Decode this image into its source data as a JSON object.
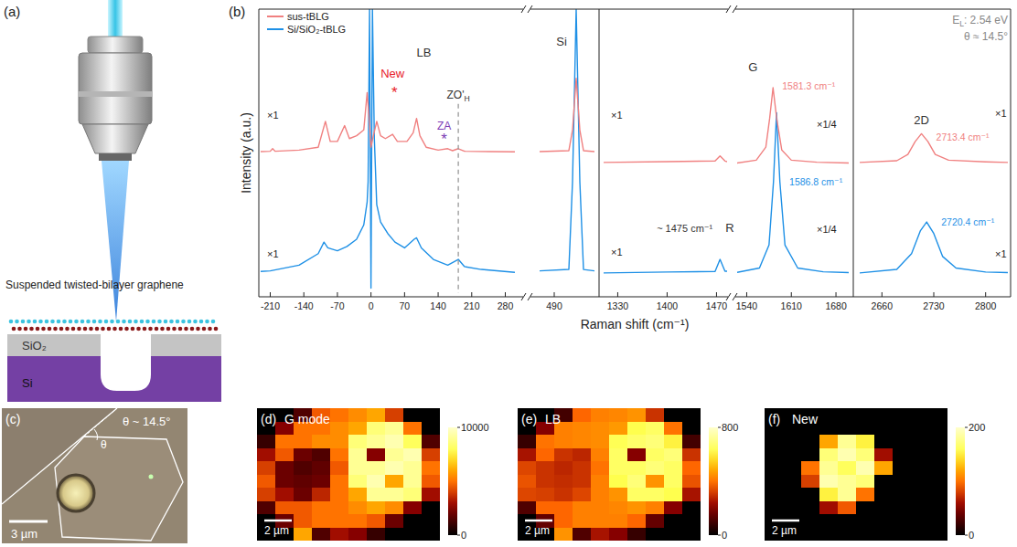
{
  "figure": {
    "a": {
      "label": "(a)",
      "sample": "Suspended twisted-bilayer graphene",
      "oxide": "SiO₂",
      "substrate": "Si"
    },
    "b": {
      "label": "(b)",
      "ylabel": "Intensity (a.u.)",
      "xlabel": "Raman shift (cm⁻¹)",
      "laser": "EL: 2.54 eV",
      "angle": "θ ≈ 14.5°"
    },
    "c": {
      "label": "(c)",
      "angle": "θ ~ 14.5°",
      "theta": "θ",
      "scale_bar": "3 µm"
    }
  },
  "chart_data": [
    {
      "type": "line",
      "xlim": [
        -230,
        300
      ],
      "ylim": [
        0,
        100
      ],
      "xticks": [
        -210,
        -140,
        -70,
        0,
        70,
        140,
        210,
        280
      ],
      "tick_labels": "x",
      "series": [
        {
          "name": "sus-tBLG",
          "color": "#f08080",
          "x": [
            -230,
            -210,
            -205,
            -200,
            -150,
            -110,
            -95,
            -85,
            -70,
            -55,
            -45,
            -30,
            -15,
            -8,
            -3,
            0,
            5,
            12,
            20,
            30,
            45,
            55,
            75,
            88,
            95,
            102,
            115,
            140,
            160,
            170,
            182,
            195,
            250,
            300
          ],
          "values": [
            50.5,
            50.6,
            51.5,
            50.6,
            51,
            52,
            61,
            54,
            54,
            59.5,
            55,
            56,
            58,
            71,
            60,
            52,
            56,
            61,
            56,
            55,
            56.5,
            54,
            54,
            57,
            62,
            56,
            52,
            51,
            51.5,
            50.8,
            51.5,
            50.6,
            50.5,
            50.4
          ]
        },
        {
          "name": "Si/SiO₂-tBLG",
          "color": "#1e90e6",
          "x": [
            -230,
            -210,
            -150,
            -110,
            -98,
            -90,
            -70,
            -50,
            -30,
            -15,
            -8,
            -6,
            -3,
            0,
            3,
            7,
            12,
            20,
            35,
            50,
            70,
            90,
            95,
            105,
            130,
            160,
            182,
            195,
            230,
            300
          ],
          "values": [
            8.8,
            9,
            11,
            15,
            19,
            17,
            16,
            17.5,
            20,
            25,
            33,
            40,
            100,
            3,
            100,
            55,
            32,
            26,
            22,
            19,
            17,
            20,
            20.5,
            17,
            13,
            11,
            13,
            10.5,
            9.5,
            8.5
          ]
        }
      ],
      "annotations": [
        {
          "text": "LB"
        },
        {
          "text": "New",
          "color": "#e8202a"
        },
        {
          "text": "*",
          "color": "#e8202a"
        },
        {
          "text": "ZA",
          "color": "#7d3cb5"
        },
        {
          "text": "*",
          "color": "#7d3cb5"
        },
        {
          "text": "ZO'H"
        }
      ],
      "scale_labels": [
        "×1",
        "×1"
      ]
    },
    {
      "type": "line",
      "xlim": [
        470,
        545
      ],
      "ylim": [
        0,
        100
      ],
      "xticks": [
        490
      ],
      "tick_labels": "x",
      "series": [
        {
          "color": "#f08080",
          "x": [
            470,
            510,
            515,
            520,
            525,
            530,
            545
          ],
          "values": [
            50.5,
            50.8,
            58,
            76,
            58,
            50.8,
            50.5
          ]
        },
        {
          "color": "#1e90e6",
          "x": [
            470,
            510,
            515,
            520,
            525,
            530,
            545
          ],
          "values": [
            9,
            9.5,
            40,
            100,
            40,
            9.5,
            9
          ]
        }
      ],
      "annotations": [
        {
          "text": "Si"
        }
      ]
    },
    {
      "type": "line",
      "xlim": [
        1310,
        1485
      ],
      "ylim": [
        0,
        100
      ],
      "xticks": [
        1330,
        1400,
        1470
      ],
      "tick_labels": "x",
      "series": [
        {
          "color": "#f08080",
          "x": [
            1310,
            1400,
            1468,
            1475,
            1482,
            1485
          ],
          "values": [
            46.7,
            47,
            47.2,
            49,
            47.2,
            47
          ]
        },
        {
          "color": "#1e90e6",
          "x": [
            1310,
            1400,
            1468,
            1475,
            1482,
            1485
          ],
          "values": [
            8.3,
            8.6,
            8.8,
            13,
            8.9,
            8.9
          ]
        }
      ],
      "annotations": [
        {
          "text": "~ 1475 cm⁻¹"
        },
        {
          "text": "R"
        }
      ],
      "scale_labels": [
        "×1",
        "×1"
      ]
    },
    {
      "type": "line",
      "xlim": [
        1525,
        1700
      ],
      "ylim": [
        0,
        100
      ],
      "xticks": [
        1540,
        1610,
        1680
      ],
      "tick_labels": "x",
      "series": [
        {
          "color": "#f08080",
          "x": [
            1525,
            1555,
            1570,
            1576,
            1581.3,
            1587,
            1595,
            1610,
            1650,
            1700
          ],
          "values": [
            46.5,
            47.5,
            52,
            62,
            72.7,
            62,
            51,
            47.5,
            46.8,
            46.5
          ]
        },
        {
          "color": "#1e90e6",
          "x": [
            1525,
            1560,
            1575,
            1582,
            1586.8,
            1592,
            1600,
            1620,
            1660,
            1700
          ],
          "values": [
            8.5,
            10,
            18,
            40,
            64,
            40,
            18,
            10,
            8.7,
            8.4
          ]
        }
      ],
      "annotations": [
        {
          "text": "G"
        },
        {
          "text": "1581.3 cm⁻¹",
          "color": "#f08080"
        },
        {
          "text": "1586.8 cm⁻¹",
          "color": "#1e90e6"
        }
      ],
      "scale_labels": [
        "×1/4",
        "×1/4"
      ]
    },
    {
      "type": "line",
      "xlim": [
        2630,
        2830
      ],
      "ylim": [
        0,
        100
      ],
      "xticks": [
        2660,
        2730,
        2800
      ],
      "tick_labels": "x",
      "series": [
        {
          "color": "#f08080",
          "x": [
            2630,
            2680,
            2695,
            2705,
            2713.4,
            2722,
            2732,
            2750,
            2800,
            2830
          ],
          "values": [
            46.7,
            47.3,
            49.5,
            54,
            56.7,
            54,
            49.5,
            47.5,
            46.9,
            46.7
          ]
        },
        {
          "color": "#1e90e6",
          "x": [
            2630,
            2680,
            2700,
            2712,
            2720.4,
            2730,
            2742,
            2760,
            2800,
            2830
          ],
          "values": [
            8.3,
            9.5,
            15,
            23,
            26,
            22,
            14,
            10,
            8.6,
            8.4
          ]
        }
      ],
      "annotations": [
        {
          "text": "2D"
        },
        {
          "text": "2713.4 cm⁻¹",
          "color": "#f08080"
        },
        {
          "text": "2720.4 cm⁻¹",
          "color": "#1e90e6"
        }
      ],
      "scale_labels": [
        "×1",
        "×1"
      ]
    },
    {
      "type": "heatmap",
      "panel": "(d)",
      "title": "G mode",
      "scale_bar": "2 µm",
      "colorbar": {
        "range": [
          0,
          10000
        ],
        "ticks": [
          0,
          10000
        ]
      },
      "cells": [
        [
          0,
          0,
          1500,
          4500,
          5000,
          5500,
          6000,
          4000,
          0,
          0
        ],
        [
          0,
          2500,
          5000,
          5000,
          5500,
          6000,
          8500,
          9000,
          5000,
          0
        ],
        [
          1000,
          5000,
          5000,
          5500,
          5500,
          8500,
          9000,
          9500,
          8000,
          1500
        ],
        [
          3000,
          4500,
          2000,
          1500,
          5000,
          9000,
          2500,
          9000,
          9500,
          4000
        ],
        [
          4000,
          2000,
          1500,
          1800,
          4500,
          9000,
          9000,
          9500,
          9000,
          5000
        ],
        [
          4500,
          2000,
          1800,
          2000,
          5000,
          8500,
          9500,
          6000,
          9000,
          4500
        ],
        [
          4000,
          3000,
          2000,
          3500,
          5000,
          6000,
          9000,
          9000,
          8500,
          3000
        ],
        [
          1500,
          4500,
          4500,
          5000,
          5000,
          5500,
          6000,
          5500,
          2500,
          0
        ],
        [
          0,
          2000,
          4500,
          5000,
          5000,
          5000,
          4500,
          2000,
          0,
          0
        ],
        [
          0,
          0,
          6000,
          1500,
          3000,
          2500,
          1000,
          0,
          0,
          0
        ]
      ]
    },
    {
      "type": "heatmap",
      "panel": "(e)",
      "title": "LB",
      "scale_bar": "2 µm",
      "colorbar": {
        "range": [
          0,
          800
        ],
        "ticks": [
          0,
          800
        ]
      },
      "cells": [
        [
          0,
          0,
          100,
          380,
          420,
          430,
          450,
          300,
          0,
          0
        ],
        [
          0,
          200,
          420,
          430,
          440,
          460,
          620,
          650,
          400,
          0
        ],
        [
          80,
          400,
          420,
          430,
          440,
          630,
          660,
          680,
          600,
          100
        ],
        [
          250,
          380,
          300,
          280,
          420,
          650,
          200,
          650,
          680,
          300
        ],
        [
          330,
          300,
          280,
          300,
          400,
          650,
          650,
          680,
          650,
          380
        ],
        [
          350,
          300,
          290,
          300,
          420,
          620,
          680,
          450,
          650,
          350
        ],
        [
          330,
          320,
          300,
          330,
          420,
          450,
          650,
          650,
          620,
          250
        ],
        [
          120,
          380,
          380,
          420,
          420,
          430,
          450,
          420,
          200,
          0
        ],
        [
          0,
          150,
          380,
          420,
          420,
          420,
          380,
          150,
          0,
          0
        ],
        [
          0,
          0,
          450,
          120,
          250,
          200,
          80,
          0,
          0,
          0
        ]
      ]
    },
    {
      "type": "heatmap",
      "panel": "(f)",
      "title": "New",
      "scale_bar": "2 µm",
      "colorbar": {
        "range": [
          0,
          200
        ],
        "ticks": [
          0,
          200
        ]
      },
      "cells": [
        [
          0,
          0,
          0,
          0,
          0,
          0,
          0,
          0,
          0,
          0
        ],
        [
          0,
          0,
          0,
          0,
          0,
          0,
          0,
          0,
          0,
          0
        ],
        [
          0,
          0,
          0,
          120,
          180,
          150,
          0,
          0,
          0,
          0
        ],
        [
          0,
          0,
          0,
          170,
          190,
          170,
          60,
          0,
          0,
          0
        ],
        [
          0,
          0,
          100,
          180,
          160,
          190,
          120,
          0,
          0,
          0
        ],
        [
          0,
          0,
          80,
          190,
          180,
          170,
          0,
          0,
          0,
          0
        ],
        [
          0,
          0,
          0,
          150,
          180,
          100,
          0,
          0,
          0,
          0
        ],
        [
          0,
          0,
          0,
          60,
          90,
          0,
          0,
          0,
          0,
          0
        ],
        [
          0,
          0,
          0,
          0,
          0,
          0,
          0,
          0,
          0,
          0
        ],
        [
          0,
          0,
          0,
          0,
          0,
          0,
          0,
          0,
          0,
          0
        ]
      ]
    }
  ]
}
